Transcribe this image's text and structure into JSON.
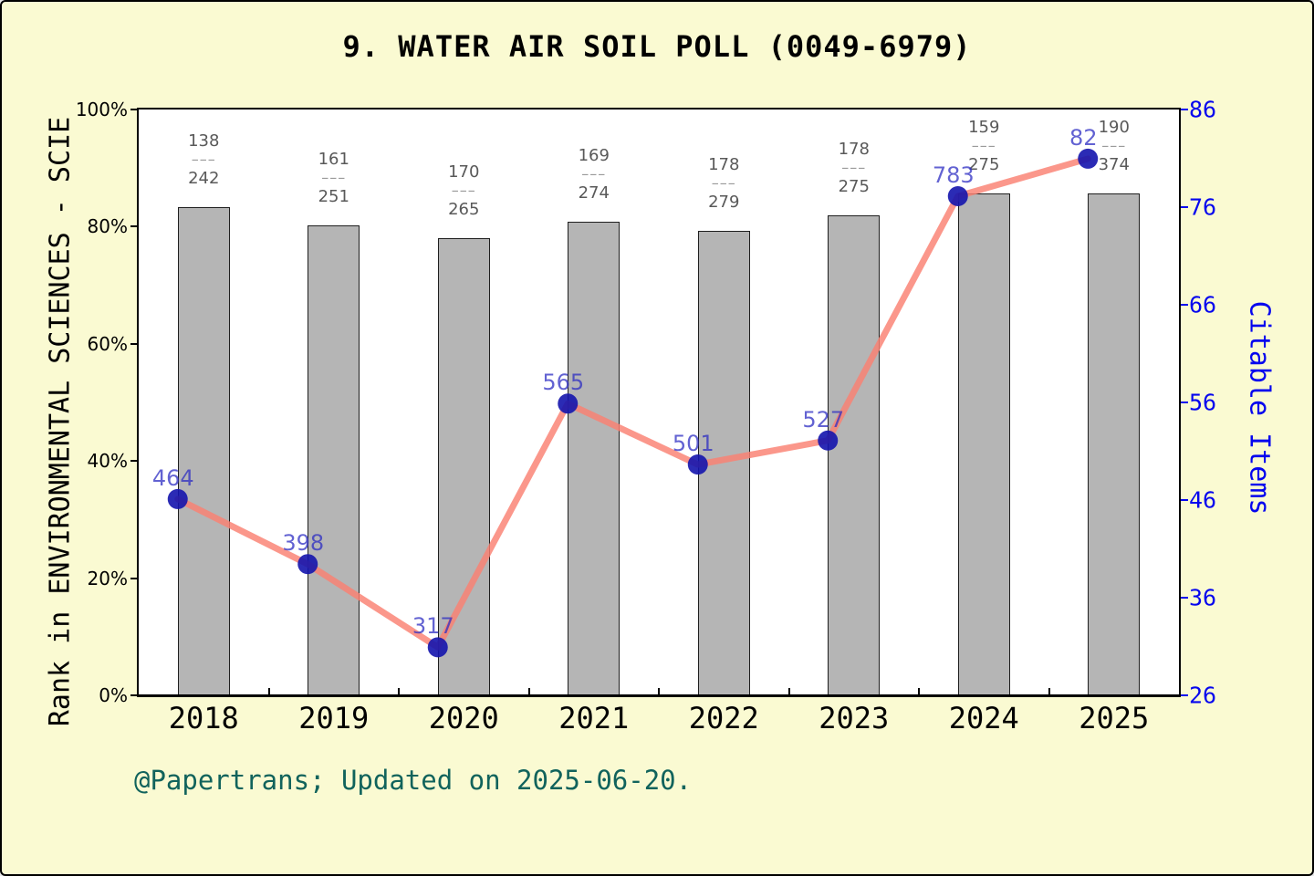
{
  "title": "9. WATER AIR SOIL POLL (0049-6979)",
  "caption": "@Papertrans; Updated on 2025-06-20.",
  "colors": {
    "background": "#FAFAD2",
    "plot_background": "#FFFFFF",
    "bar_fill": "#B5B5B5",
    "bar_edge": "#1F1F1F",
    "line": "#FA8072",
    "dot": "#1414AD",
    "point_label": "#2D2DC3",
    "right_axis": "#0505EE",
    "caption": "#11635C",
    "fraction_text": "#595959"
  },
  "chart_data": {
    "type": "bar+line",
    "categories": [
      "2018",
      "2019",
      "2020",
      "2021",
      "2022",
      "2023",
      "2024",
      "2025"
    ],
    "series": [
      {
        "name": "rank-percentile-line",
        "type": "line",
        "axis": "left",
        "values_percent": [
          33.5,
          22.4,
          8.2,
          49.8,
          39.4,
          43.5,
          85.2,
          91.6
        ],
        "point_labels": [
          "464",
          "398",
          "317",
          "565",
          "501",
          "527",
          "783",
          "82"
        ]
      },
      {
        "name": "citable-items-bars",
        "type": "bar",
        "axis": "left",
        "values_percent": [
          83.4,
          80.2,
          78.0,
          80.9,
          79.3,
          82.0,
          85.6,
          85.6
        ],
        "bar_labels": [
          {
            "numerator": "138",
            "denominator": "242"
          },
          {
            "numerator": "161",
            "denominator": "251"
          },
          {
            "numerator": "170",
            "denominator": "265"
          },
          {
            "numerator": "169",
            "denominator": "274"
          },
          {
            "numerator": "178",
            "denominator": "279"
          },
          {
            "numerator": "178",
            "denominator": "275"
          },
          {
            "numerator": "159",
            "denominator": "275"
          },
          {
            "numerator": "190",
            "denominator": "374"
          }
        ],
        "fraction_separator": "–––"
      }
    ],
    "left_axis": {
      "label": "Rank in ENVIRONMENTAL SCIENCES - SCIE",
      "min": 0,
      "max": 100,
      "ticks": [
        "0%",
        "20%",
        "40%",
        "60%",
        "80%",
        "100%"
      ]
    },
    "right_axis": {
      "label": "Citable Items",
      "min": 26,
      "max": 86,
      "ticks": [
        "26",
        "36",
        "46",
        "56",
        "66",
        "76",
        "86"
      ]
    },
    "grid": false,
    "legend": false
  }
}
